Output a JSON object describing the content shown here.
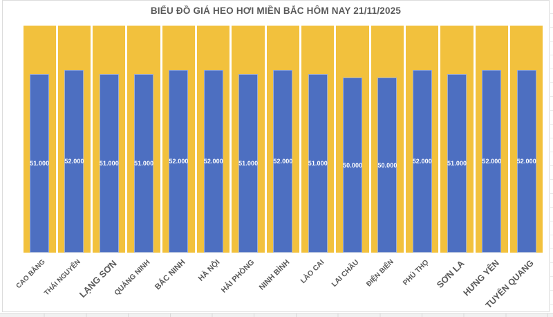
{
  "chart_data": {
    "type": "bar",
    "title": "BIỂU ĐỒ GIÁ HEO HƠI MIỀN BẮC HÔM NAY 21/11/2025",
    "categories": [
      "CAO BẰNG",
      "THÁI NGUYÊN",
      "LẠNG SƠN",
      "QUẢNG NINH",
      "BẮC NINH",
      "HÀ NỘI",
      "HẢI PHÒNG",
      "NINH BÌNH",
      "LÀO CAI",
      "LAI CHÂU",
      "ĐIỆN BIÊN",
      "PHÚ THỌ",
      "SƠN LA",
      "HƯNG YÊN",
      "TUYÊN QUANG"
    ],
    "values": [
      51000,
      52000,
      51000,
      51000,
      52000,
      52000,
      51000,
      52000,
      51000,
      50000,
      50000,
      52000,
      51000,
      52000,
      52000
    ],
    "value_labels": [
      "51.000",
      "52.000",
      "51.000",
      "51.000",
      "52.000",
      "52.000",
      "51.000",
      "52.000",
      "51.000",
      "50.000",
      "50.000",
      "52.000",
      "51.000",
      "52.000",
      "52.000"
    ],
    "colors": {
      "background_bar": "#F2C13D",
      "price_bar": "#4D6FC1",
      "value_label": "#FFFFFF",
      "category_label": "#595959",
      "title": "#595959"
    },
    "layout_hints": {
      "legend": "none",
      "gridlines": false,
      "y_axis": "hidden",
      "background_bars_full_height": true,
      "category_label_rotation_deg": 45,
      "category_label_font_px": [
        10,
        10,
        13,
        10.5,
        11.5,
        11,
        11,
        11,
        10.5,
        10.5,
        10,
        10.5,
        13,
        12.5,
        12.5
      ],
      "value_label_position": "center"
    }
  }
}
